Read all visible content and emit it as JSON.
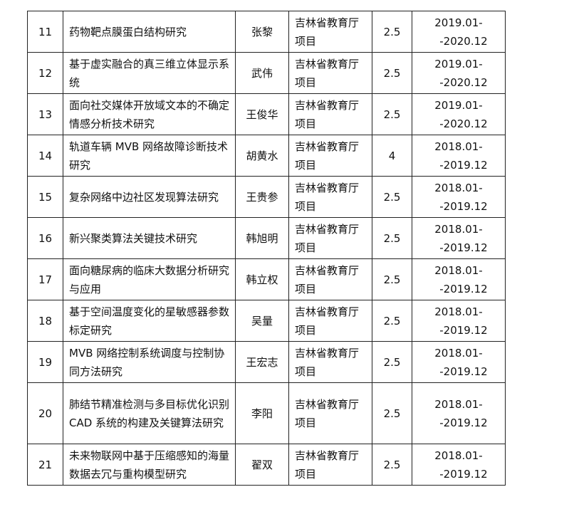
{
  "rows": [
    {
      "no": "11",
      "title": "药物靶点膜蛋白结构研究",
      "person": "张黎",
      "source": "吉林省教育厅项目",
      "amount": "2.5",
      "start": "2019.01-",
      "end": "-2020.12"
    },
    {
      "no": "12",
      "title": "基于虚实融合的真三维立体显示系统",
      "person": "武伟",
      "source": "吉林省教育厅项目",
      "amount": "2.5",
      "start": "2019.01-",
      "end": "-2020.12"
    },
    {
      "no": "13",
      "title": "面向社交媒体开放域文本的不确定情感分析技术研究",
      "person": "王俊华",
      "source": "吉林省教育厅项目",
      "amount": "2.5",
      "start": "2019.01-",
      "end": "-2020.12"
    },
    {
      "no": "14",
      "title": "轨道车辆 MVB 网络故障诊断技术研究",
      "person": "胡黄水",
      "source": "吉林省教育厅项目",
      "amount": "4",
      "start": "2018.01-",
      "end": "-2019.12"
    },
    {
      "no": "15",
      "title": "复杂网络中边社区发现算法研究",
      "person": "王贵参",
      "source": "吉林省教育厅项目",
      "amount": "2.5",
      "start": "2018.01-",
      "end": "-2019.12"
    },
    {
      "no": "16",
      "title": "新兴聚类算法关键技术研究",
      "person": "韩旭明",
      "source": "吉林省教育厅项目",
      "amount": "2.5",
      "start": "2018.01-",
      "end": "-2019.12"
    },
    {
      "no": "17",
      "title": "面向糖尿病的临床大数据分析研究与应用",
      "person": "韩立权",
      "source": "吉林省教育厅项目",
      "amount": "2.5",
      "start": "2018.01-",
      "end": "-2019.12"
    },
    {
      "no": "18",
      "title": "基于空间温度变化的星敏感器参数标定研究",
      "person": "吴量",
      "source": "吉林省教育厅项目",
      "amount": "2.5",
      "start": "2018.01-",
      "end": "-2019.12"
    },
    {
      "no": "19",
      "title": "MVB 网络控制系统调度与控制协同方法研究",
      "person": "王宏志",
      "source": "吉林省教育厅项目",
      "amount": "2.5",
      "start": "2018.01-",
      "end": "-2019.12"
    },
    {
      "no": "20",
      "title": "肺结节精准检测与多目标优化识别 CAD 系统的构建及关键算法研究",
      "person": "李阳",
      "source": "吉林省教育厅项目",
      "amount": "2.5",
      "start": "2018.01-",
      "end": "-2019.12"
    },
    {
      "no": "21",
      "title": "未来物联网中基于压缩感知的海量数据去冗与重构模型研究",
      "person": "翟双",
      "source": "吉林省教育厅项目",
      "amount": "2.5",
      "start": "2018.01-",
      "end": "-2019.12"
    }
  ]
}
